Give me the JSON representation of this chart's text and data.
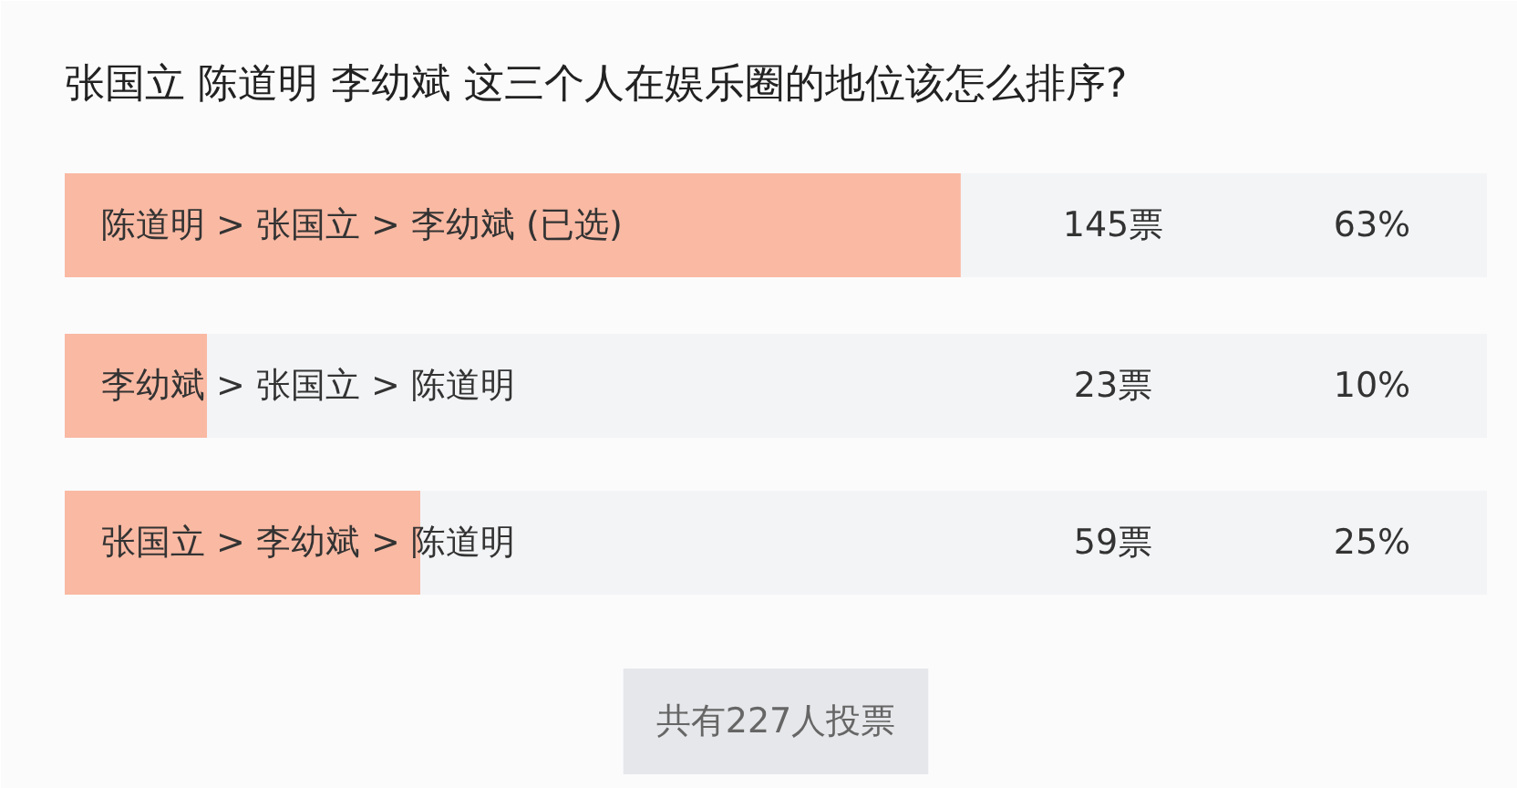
{
  "chart_data": {
    "type": "bar",
    "orientation": "horizontal",
    "title": "张国立 陈道明 李幼斌 这三个人在娱乐圈的地位该怎么排序?",
    "categories": [
      "陈道明 > 张国立 > 李幼斌 (已选)",
      "李幼斌 > 张国立 > 陈道明",
      "张国立 > 李幼斌 > 陈道明"
    ],
    "values": [
      63,
      10,
      25
    ],
    "value_labels": [
      "63%",
      "10%",
      "25%"
    ],
    "color": "#f9b9a3",
    "xlim": [
      0,
      100
    ],
    "tick_labels": "y",
    "grid": false,
    "annotations": [
      "145票",
      "23票",
      "59票",
      "共有227人投票"
    ]
  }
}
